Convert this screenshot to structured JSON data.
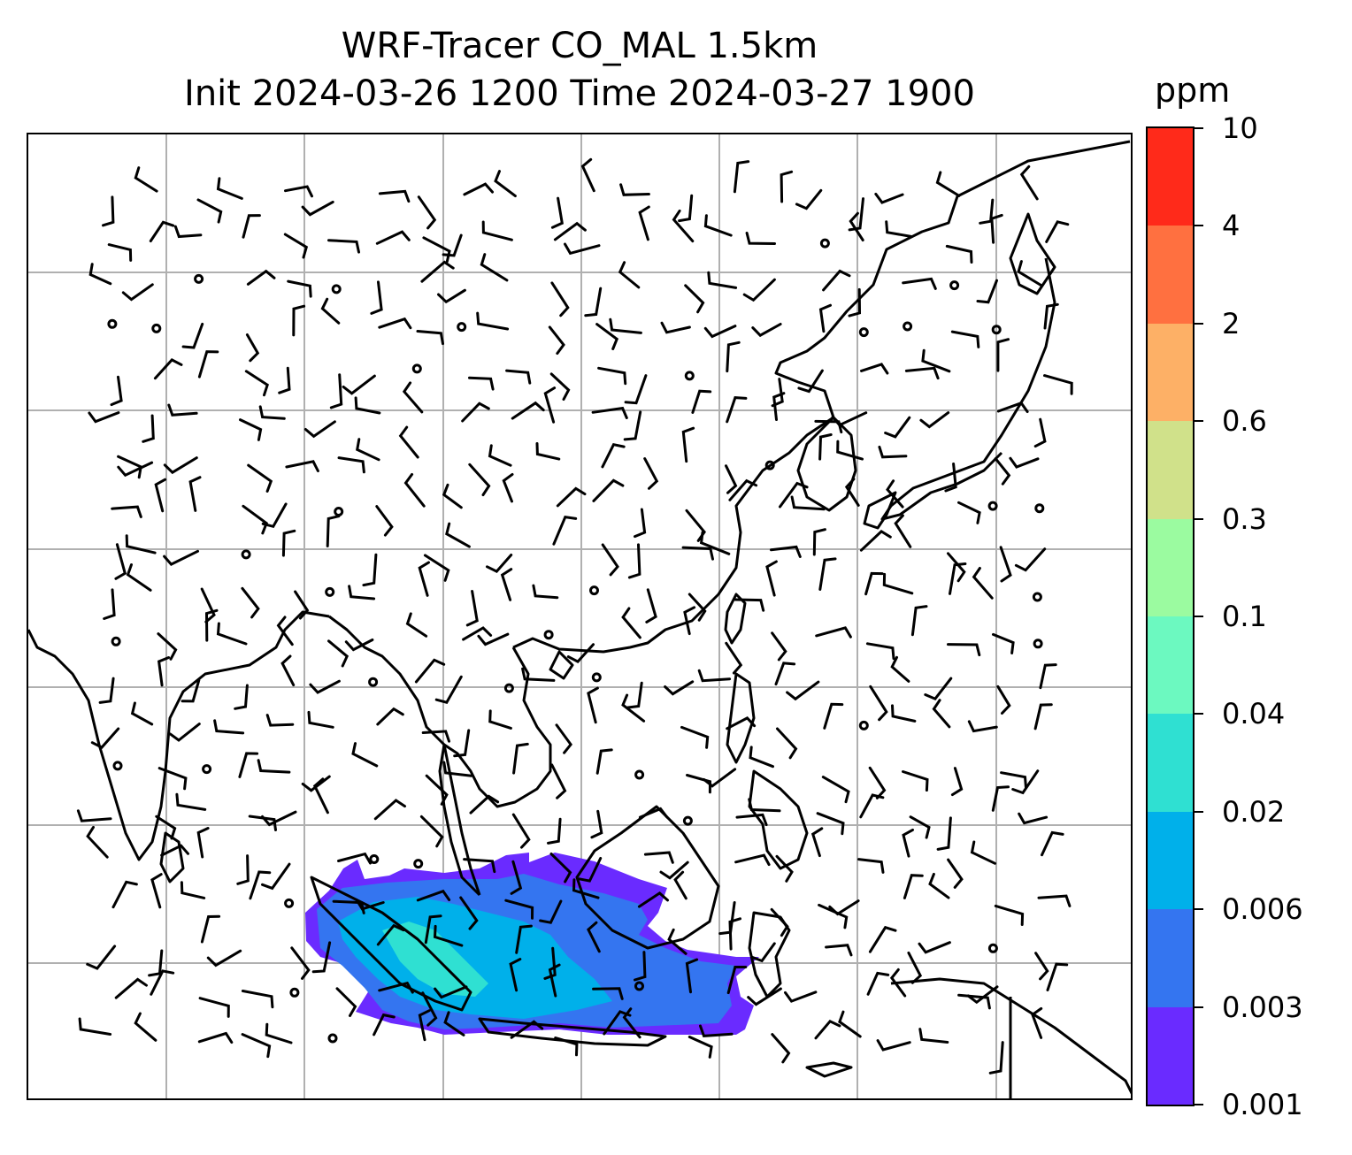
{
  "title": {
    "line1": "WRF-Tracer CO_MAL 1.5km",
    "line2": "Init 2024-03-26 1200 Time 2024-03-27 1900"
  },
  "colorbar": {
    "unit": "ppm",
    "levels": [
      "0.001",
      "0.003",
      "0.006",
      "0.02",
      "0.04",
      "0.1",
      "0.3",
      "0.6",
      "2",
      "4",
      "10"
    ],
    "colors": [
      "#6a2bff",
      "#3475f0",
      "#00b0ea",
      "#2fe0d2",
      "#6cf9c0",
      "#9bfba0",
      "#d0e18a",
      "#fdb066",
      "#ff7040",
      "#ff2a1a"
    ]
  },
  "map": {
    "region": "Asia",
    "gridlines": true,
    "layers": [
      "coastlines",
      "country-borders",
      "wind-barbs",
      "tracer-concentration"
    ],
    "colors": {
      "coast": "#000000",
      "gridline": "#b0b0b0",
      "barb": "#000000"
    }
  }
}
